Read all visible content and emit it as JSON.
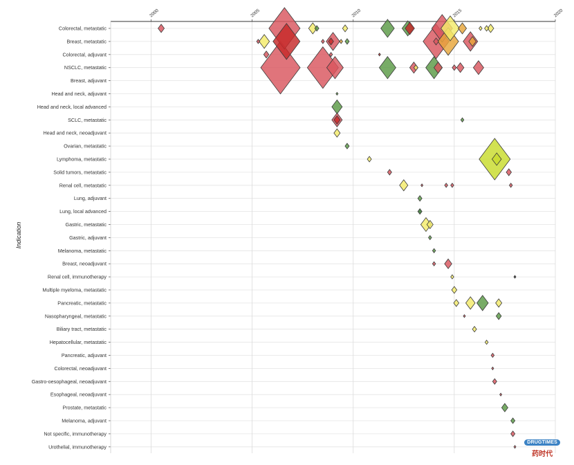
{
  "chart_data": {
    "type": "scatter",
    "marker": "diamond",
    "ylabel": "Indication",
    "xlabel": "",
    "xlim": [
      1998,
      2020
    ],
    "xticks": [
      2000,
      2005,
      2010,
      2015,
      2020
    ],
    "grid": true,
    "categories": [
      "Colorectal, metastatic",
      "Breast, metastatic",
      "Colorectal, adjuvant",
      "NSCLC, metastatic",
      "Breast, adjuvant",
      "Head and neck, adjuvant",
      "Head and neck, local advanced",
      "SCLC, metastatic",
      "Head and neck, neoadjuvant",
      "Ovarian, metastatic",
      "Lymphoma, metastatic",
      "Solid tumors, metastatic",
      "Renal cell, metastatic",
      "Lung, adjuvant",
      "Lung, local advanced",
      "Gastric, metastatic",
      "Gastric, adjuvant",
      "Melanoma, metastatic",
      "Breast, neoadjuvant",
      "Renal cell, immunotherapy",
      "Multiple myeloma, metastatic",
      "Pancreatic, metastatic",
      "Nasopharyngeal, metastatic",
      "Biliary tract, metastatic",
      "Hepatocellular, metastatic",
      "Pancreatic, adjuvant",
      "Colorectal, neoadjuvant",
      "Gastro-oesophageal, neoadjuvant",
      "Esophageal, neoadjuvant",
      "Prostate, metastatic",
      "Melanoma, adjuvant",
      "Not specific, immunotherapy",
      "Urothelial, immunotherapy"
    ],
    "points": [
      {
        "x": 2000.5,
        "cat": 0,
        "size": 6,
        "color": "red"
      },
      {
        "x": 2006.6,
        "cat": 0,
        "size": 30,
        "color": "red"
      },
      {
        "x": 2008.0,
        "cat": 0,
        "size": 8,
        "color": "yellow"
      },
      {
        "x": 2008.2,
        "cat": 0,
        "size": 4,
        "color": "green"
      },
      {
        "x": 2009.6,
        "cat": 0,
        "size": 5,
        "color": "yellow"
      },
      {
        "x": 2011.7,
        "cat": 0,
        "size": 13,
        "color": "green"
      },
      {
        "x": 2012.8,
        "cat": 0,
        "size": 9,
        "color": "darkred"
      },
      {
        "x": 2012.7,
        "cat": 0,
        "size": 11,
        "color": "green"
      },
      {
        "x": 2014.4,
        "cat": 0,
        "size": 20,
        "color": "red"
      },
      {
        "x": 2014.8,
        "cat": 0,
        "size": 18,
        "color": "yellow"
      },
      {
        "x": 2015.4,
        "cat": 0,
        "size": 8,
        "color": "orange"
      },
      {
        "x": 2016.3,
        "cat": 0,
        "size": 3,
        "color": "yellow"
      },
      {
        "x": 2016.6,
        "cat": 0,
        "size": 4,
        "color": "yellow"
      },
      {
        "x": 2016.8,
        "cat": 0,
        "size": 6,
        "color": "yellow"
      },
      {
        "x": 2005.3,
        "cat": 1,
        "size": 3,
        "color": "red"
      },
      {
        "x": 2005.6,
        "cat": 1,
        "size": 10,
        "color": "yellow"
      },
      {
        "x": 2006.7,
        "cat": 1,
        "size": 26,
        "color": "darkred"
      },
      {
        "x": 2008.5,
        "cat": 1,
        "size": 3,
        "color": "red"
      },
      {
        "x": 2009.0,
        "cat": 1,
        "size": 13,
        "color": "red"
      },
      {
        "x": 2008.9,
        "cat": 1,
        "size": 5,
        "color": "darkred"
      },
      {
        "x": 2009.4,
        "cat": 1,
        "size": 3,
        "color": "orange"
      },
      {
        "x": 2009.7,
        "cat": 1,
        "size": 4,
        "color": "green"
      },
      {
        "x": 2014.1,
        "cat": 1,
        "size": 25,
        "color": "red"
      },
      {
        "x": 2014.7,
        "cat": 1,
        "size": 20,
        "color": "orange"
      },
      {
        "x": 2015.8,
        "cat": 1,
        "size": 14,
        "color": "red"
      },
      {
        "x": 2015.9,
        "cat": 1,
        "size": 7,
        "color": "orange"
      },
      {
        "x": 2014.1,
        "cat": 1,
        "size": 5,
        "color": "red"
      },
      {
        "x": 2005.7,
        "cat": 2,
        "size": 5,
        "color": "red"
      },
      {
        "x": 2008.9,
        "cat": 2,
        "size": 3,
        "color": "red"
      },
      {
        "x": 2011.3,
        "cat": 2,
        "size": 2,
        "color": "darkred"
      },
      {
        "x": 2006.4,
        "cat": 3,
        "size": 38,
        "color": "red"
      },
      {
        "x": 2008.5,
        "cat": 3,
        "size": 30,
        "color": "red"
      },
      {
        "x": 2009.1,
        "cat": 3,
        "size": 16,
        "color": "red"
      },
      {
        "x": 2011.7,
        "cat": 3,
        "size": 16,
        "color": "green"
      },
      {
        "x": 2013.0,
        "cat": 3,
        "size": 8,
        "color": "red"
      },
      {
        "x": 2013.1,
        "cat": 3,
        "size": 4,
        "color": "yellow"
      },
      {
        "x": 2014.0,
        "cat": 3,
        "size": 16,
        "color": "green"
      },
      {
        "x": 2014.2,
        "cat": 3,
        "size": 8,
        "color": "red"
      },
      {
        "x": 2015.0,
        "cat": 3,
        "size": 4,
        "color": "red"
      },
      {
        "x": 2015.3,
        "cat": 3,
        "size": 7,
        "color": "red"
      },
      {
        "x": 2016.2,
        "cat": 3,
        "size": 10,
        "color": "red"
      },
      {
        "x": 2009.2,
        "cat": 5,
        "size": 2,
        "color": "green"
      },
      {
        "x": 2009.2,
        "cat": 6,
        "size": 10,
        "color": "green"
      },
      {
        "x": 2009.2,
        "cat": 7,
        "size": 10,
        "color": "red"
      },
      {
        "x": 2009.2,
        "cat": 7,
        "size": 6,
        "color": "darkred"
      },
      {
        "x": 2015.4,
        "cat": 7,
        "size": 3,
        "color": "green"
      },
      {
        "x": 2009.2,
        "cat": 8,
        "size": 6,
        "color": "yellow"
      },
      {
        "x": 2009.7,
        "cat": 9,
        "size": 4,
        "color": "green"
      },
      {
        "x": 2017.0,
        "cat": 10,
        "size": 30,
        "color": "lime"
      },
      {
        "x": 2017.1,
        "cat": 10,
        "size": 9,
        "color": "lime"
      },
      {
        "x": 2010.8,
        "cat": 10,
        "size": 4,
        "color": "yellow"
      },
      {
        "x": 2017.7,
        "cat": 11,
        "size": 5,
        "color": "red"
      },
      {
        "x": 2011.8,
        "cat": 11,
        "size": 4,
        "color": "red"
      },
      {
        "x": 2012.5,
        "cat": 12,
        "size": 8,
        "color": "yellow"
      },
      {
        "x": 2013.4,
        "cat": 12,
        "size": 2,
        "color": "red"
      },
      {
        "x": 2014.6,
        "cat": 12,
        "size": 3,
        "color": "red"
      },
      {
        "x": 2014.9,
        "cat": 12,
        "size": 3,
        "color": "red"
      },
      {
        "x": 2017.8,
        "cat": 12,
        "size": 3,
        "color": "red"
      },
      {
        "x": 2013.3,
        "cat": 13,
        "size": 4,
        "color": "green"
      },
      {
        "x": 2013.3,
        "cat": 14,
        "size": 4,
        "color": "darkgreen"
      },
      {
        "x": 2013.6,
        "cat": 15,
        "size": 10,
        "color": "yellow"
      },
      {
        "x": 2013.8,
        "cat": 15,
        "size": 6,
        "color": "yellow"
      },
      {
        "x": 2013.8,
        "cat": 16,
        "size": 3,
        "color": "green"
      },
      {
        "x": 2014.0,
        "cat": 17,
        "size": 3,
        "color": "green"
      },
      {
        "x": 2014.0,
        "cat": 18,
        "size": 3,
        "color": "red"
      },
      {
        "x": 2014.7,
        "cat": 18,
        "size": 7,
        "color": "red"
      },
      {
        "x": 2014.9,
        "cat": 19,
        "size": 3,
        "color": "yellow"
      },
      {
        "x": 2018.0,
        "cat": 19,
        "size": 2,
        "color": "black"
      },
      {
        "x": 2015.0,
        "cat": 20,
        "size": 5,
        "color": "yellow"
      },
      {
        "x": 2015.1,
        "cat": 21,
        "size": 5,
        "color": "yellow"
      },
      {
        "x": 2015.8,
        "cat": 21,
        "size": 9,
        "color": "yellow"
      },
      {
        "x": 2016.4,
        "cat": 21,
        "size": 11,
        "color": "green"
      },
      {
        "x": 2017.2,
        "cat": 21,
        "size": 6,
        "color": "yellow"
      },
      {
        "x": 2015.5,
        "cat": 22,
        "size": 2,
        "color": "red"
      },
      {
        "x": 2017.2,
        "cat": 22,
        "size": 5,
        "color": "green"
      },
      {
        "x": 2016.0,
        "cat": 23,
        "size": 4,
        "color": "yellow"
      },
      {
        "x": 2016.6,
        "cat": 24,
        "size": 3,
        "color": "yellow"
      },
      {
        "x": 2016.9,
        "cat": 25,
        "size": 3,
        "color": "red"
      },
      {
        "x": 2016.9,
        "cat": 26,
        "size": 2,
        "color": "red"
      },
      {
        "x": 2017.0,
        "cat": 27,
        "size": 4,
        "color": "red"
      },
      {
        "x": 2017.3,
        "cat": 28,
        "size": 2,
        "color": "red"
      },
      {
        "x": 2017.5,
        "cat": 29,
        "size": 6,
        "color": "green"
      },
      {
        "x": 2017.9,
        "cat": 30,
        "size": 4,
        "color": "green"
      },
      {
        "x": 2017.9,
        "cat": 31,
        "size": 4,
        "color": "red"
      },
      {
        "x": 2018.0,
        "cat": 32,
        "size": 2,
        "color": "red"
      }
    ],
    "colors": {
      "red": "#d9565e",
      "darkred": "#c62828",
      "orange": "#e8a63a",
      "yellow": "#f4ec6a",
      "lime": "#c8dc2c",
      "green": "#5a9a46",
      "darkgreen": "#2f6e2b",
      "black": "#222222"
    }
  },
  "watermark": {
    "badge_left": "DRUG",
    "badge_right": "TIMES",
    "text_cn": "药时代"
  }
}
